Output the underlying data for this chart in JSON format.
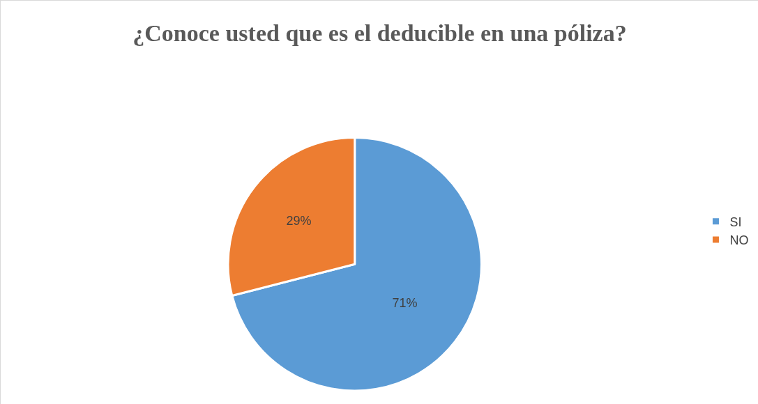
{
  "chart_data": {
    "type": "pie",
    "title": "¿Conoce usted que es el deducible en una póliza?",
    "categories": [
      "SI",
      "NO"
    ],
    "values": [
      71,
      29
    ],
    "value_labels": [
      "71%",
      "29%"
    ],
    "colors": [
      "#5b9bd5",
      "#ed7d31"
    ],
    "legend": "right"
  }
}
